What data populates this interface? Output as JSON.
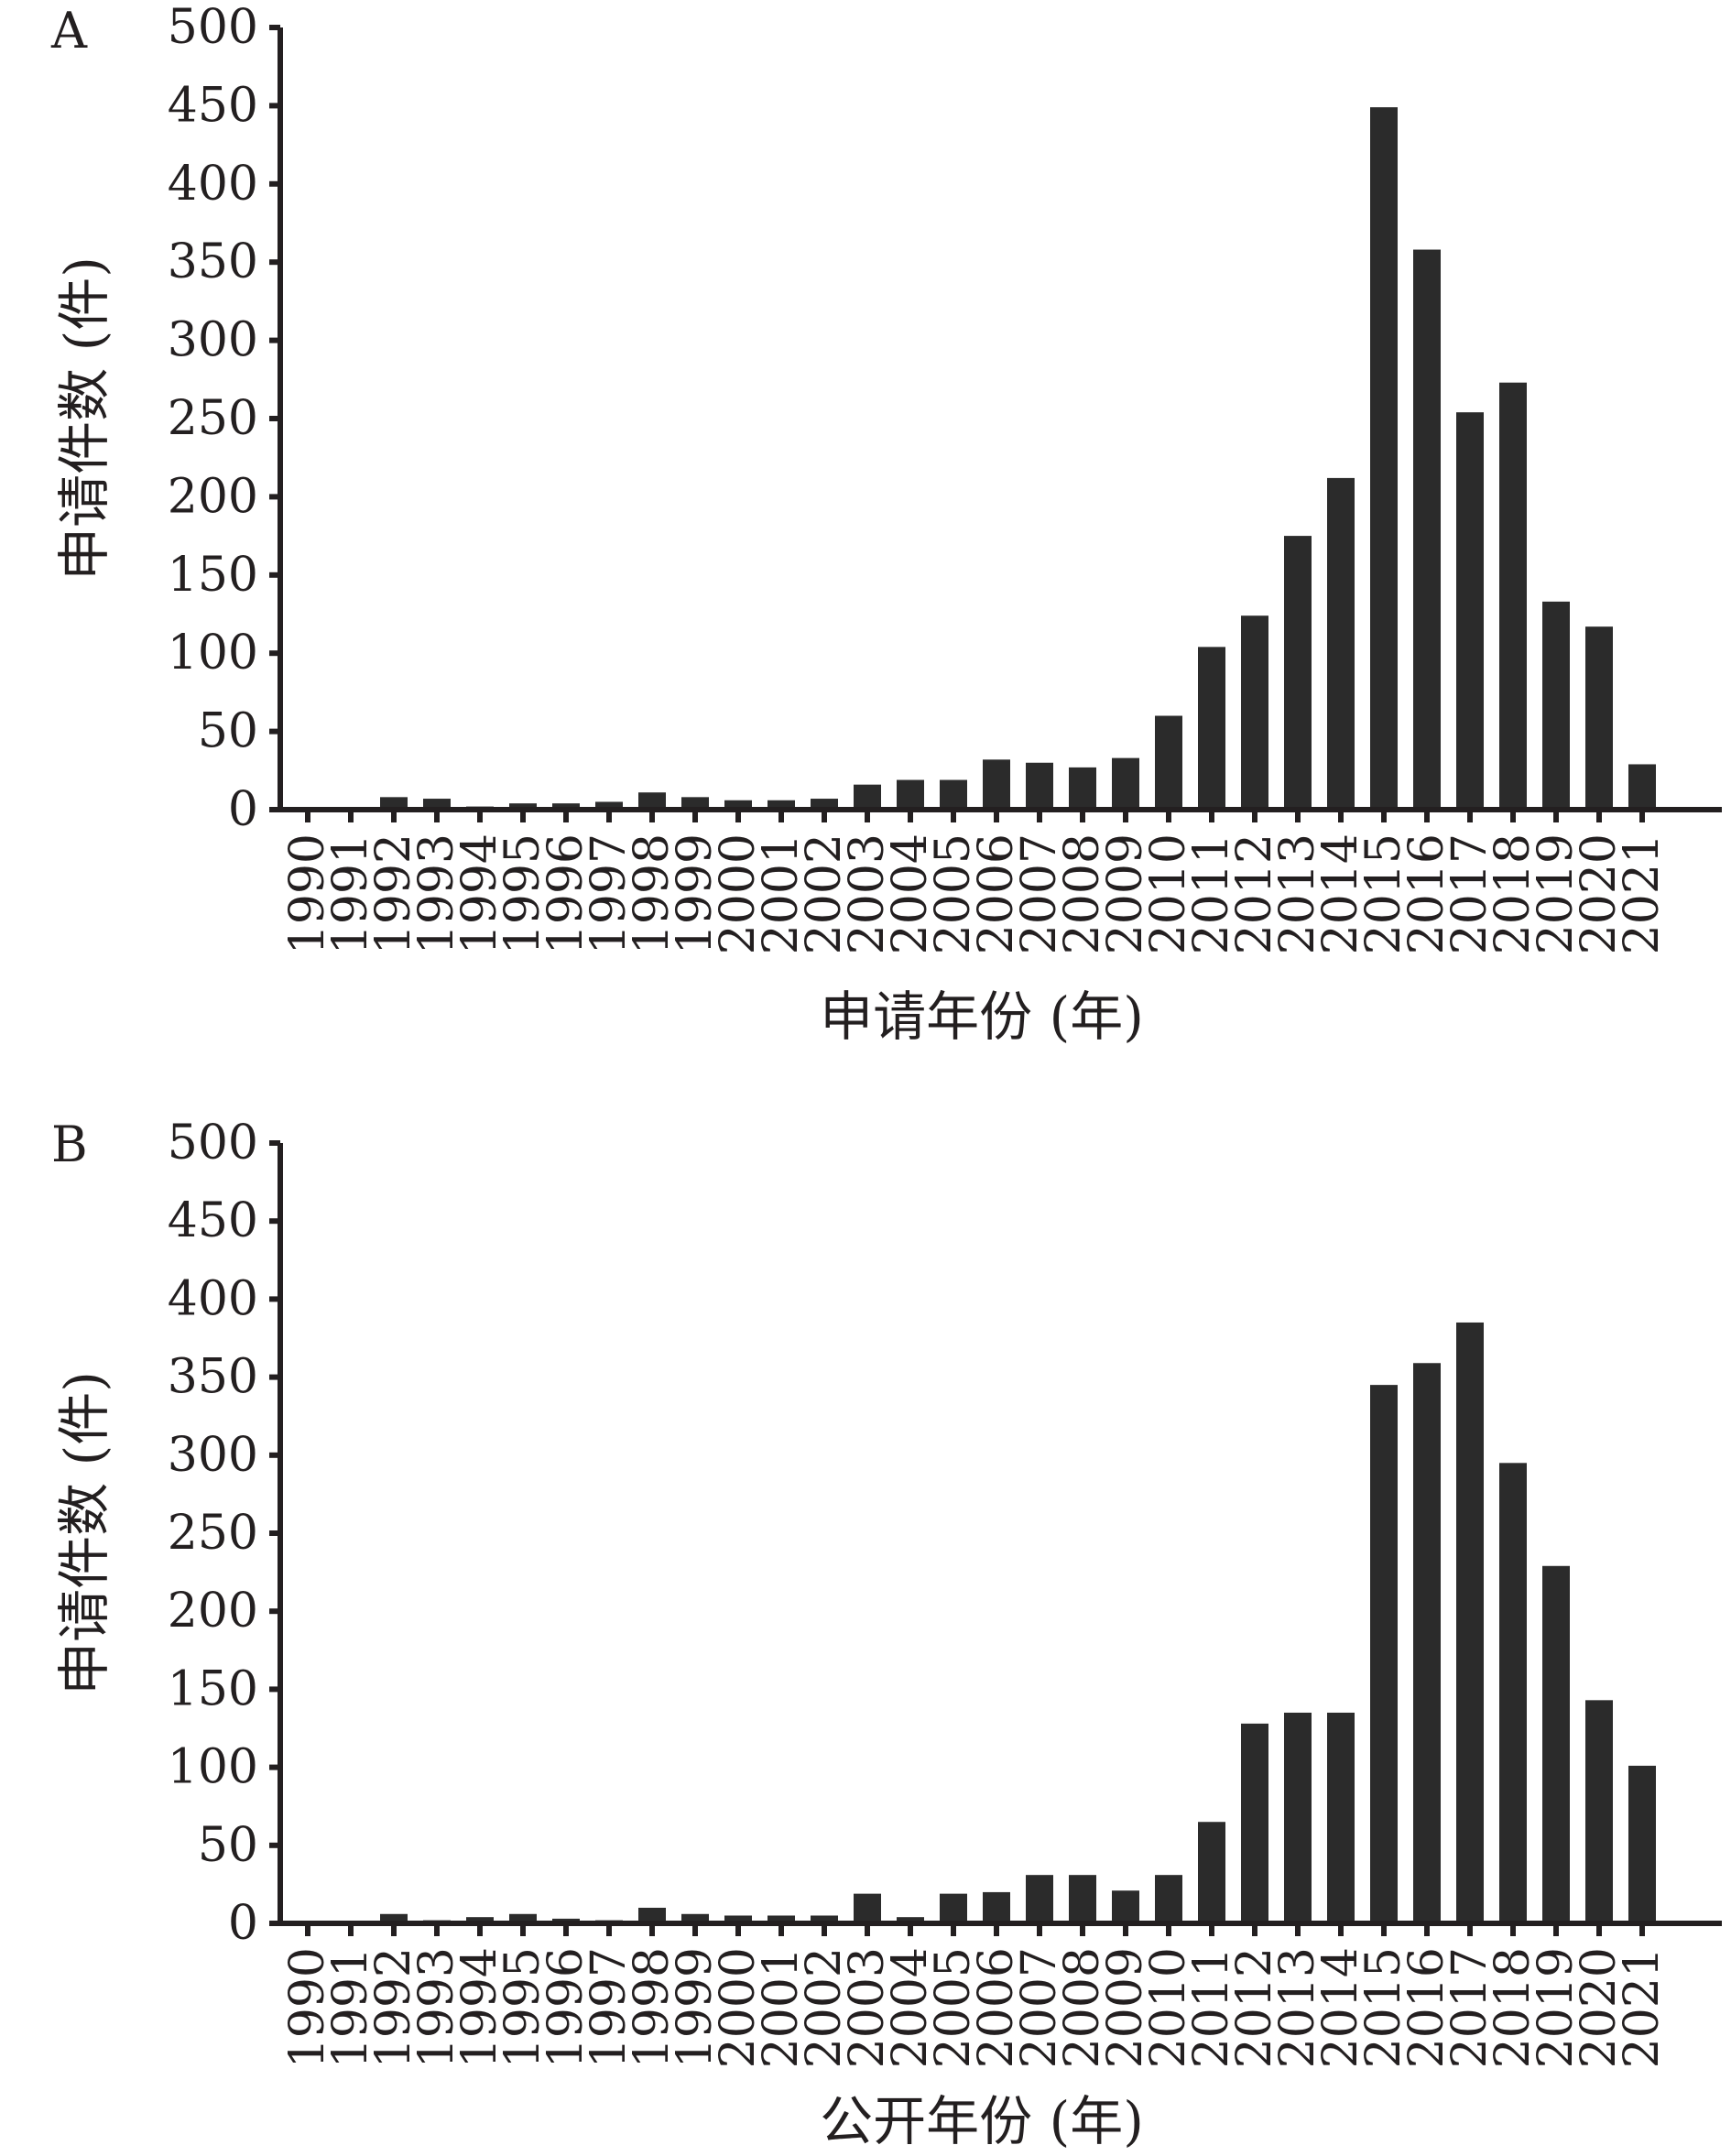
{
  "chart_data": [
    {
      "type": "bar",
      "panel": "A",
      "xlabel": "申请年份 (年)",
      "ylabel": "申请件数 (件)",
      "ylim": [
        0,
        500
      ],
      "yticks": [
        "0",
        "50",
        "100",
        "150",
        "200",
        "250",
        "300",
        "350",
        "400",
        "450",
        "500"
      ],
      "categories": [
        "1990",
        "1991",
        "1992",
        "1993",
        "1994",
        "1995",
        "1996",
        "1997",
        "1998",
        "1999",
        "2000",
        "2001",
        "2002",
        "2003",
        "2004",
        "2005",
        "2006",
        "2007",
        "2008",
        "2009",
        "2010",
        "2011",
        "2012",
        "2013",
        "2014",
        "2015",
        "2016",
        "2017",
        "2018",
        "2019",
        "2020",
        "2021"
      ],
      "values": [
        1,
        1,
        8,
        7,
        2,
        4,
        4,
        5,
        11,
        8,
        6,
        6,
        7,
        16,
        19,
        19,
        32,
        30,
        27,
        33,
        60,
        104,
        124,
        175,
        212,
        449,
        358,
        254,
        273,
        133,
        117,
        29
      ]
    },
    {
      "type": "bar",
      "panel": "B",
      "xlabel": "公开年份 (年)",
      "ylabel": "申请件数 (件)",
      "ylim": [
        0,
        500
      ],
      "yticks": [
        "0",
        "50",
        "100",
        "150",
        "200",
        "250",
        "300",
        "350",
        "400",
        "450",
        "500"
      ],
      "categories": [
        "1990",
        "1991",
        "1992",
        "1993",
        "1994",
        "1995",
        "1996",
        "1997",
        "1998",
        "1999",
        "2000",
        "2001",
        "2002",
        "2003",
        "2004",
        "2005",
        "2006",
        "2007",
        "2008",
        "2009",
        "2010",
        "2011",
        "2012",
        "2013",
        "2014",
        "2015",
        "2016",
        "2017",
        "2018",
        "2019",
        "2020",
        "2021"
      ],
      "values": [
        0,
        1,
        6,
        2,
        4,
        6,
        3,
        2,
        10,
        6,
        5,
        5,
        5,
        19,
        4,
        19,
        20,
        31,
        31,
        21,
        31,
        65,
        128,
        135,
        135,
        345,
        359,
        385,
        295,
        229,
        143,
        101
      ]
    }
  ]
}
